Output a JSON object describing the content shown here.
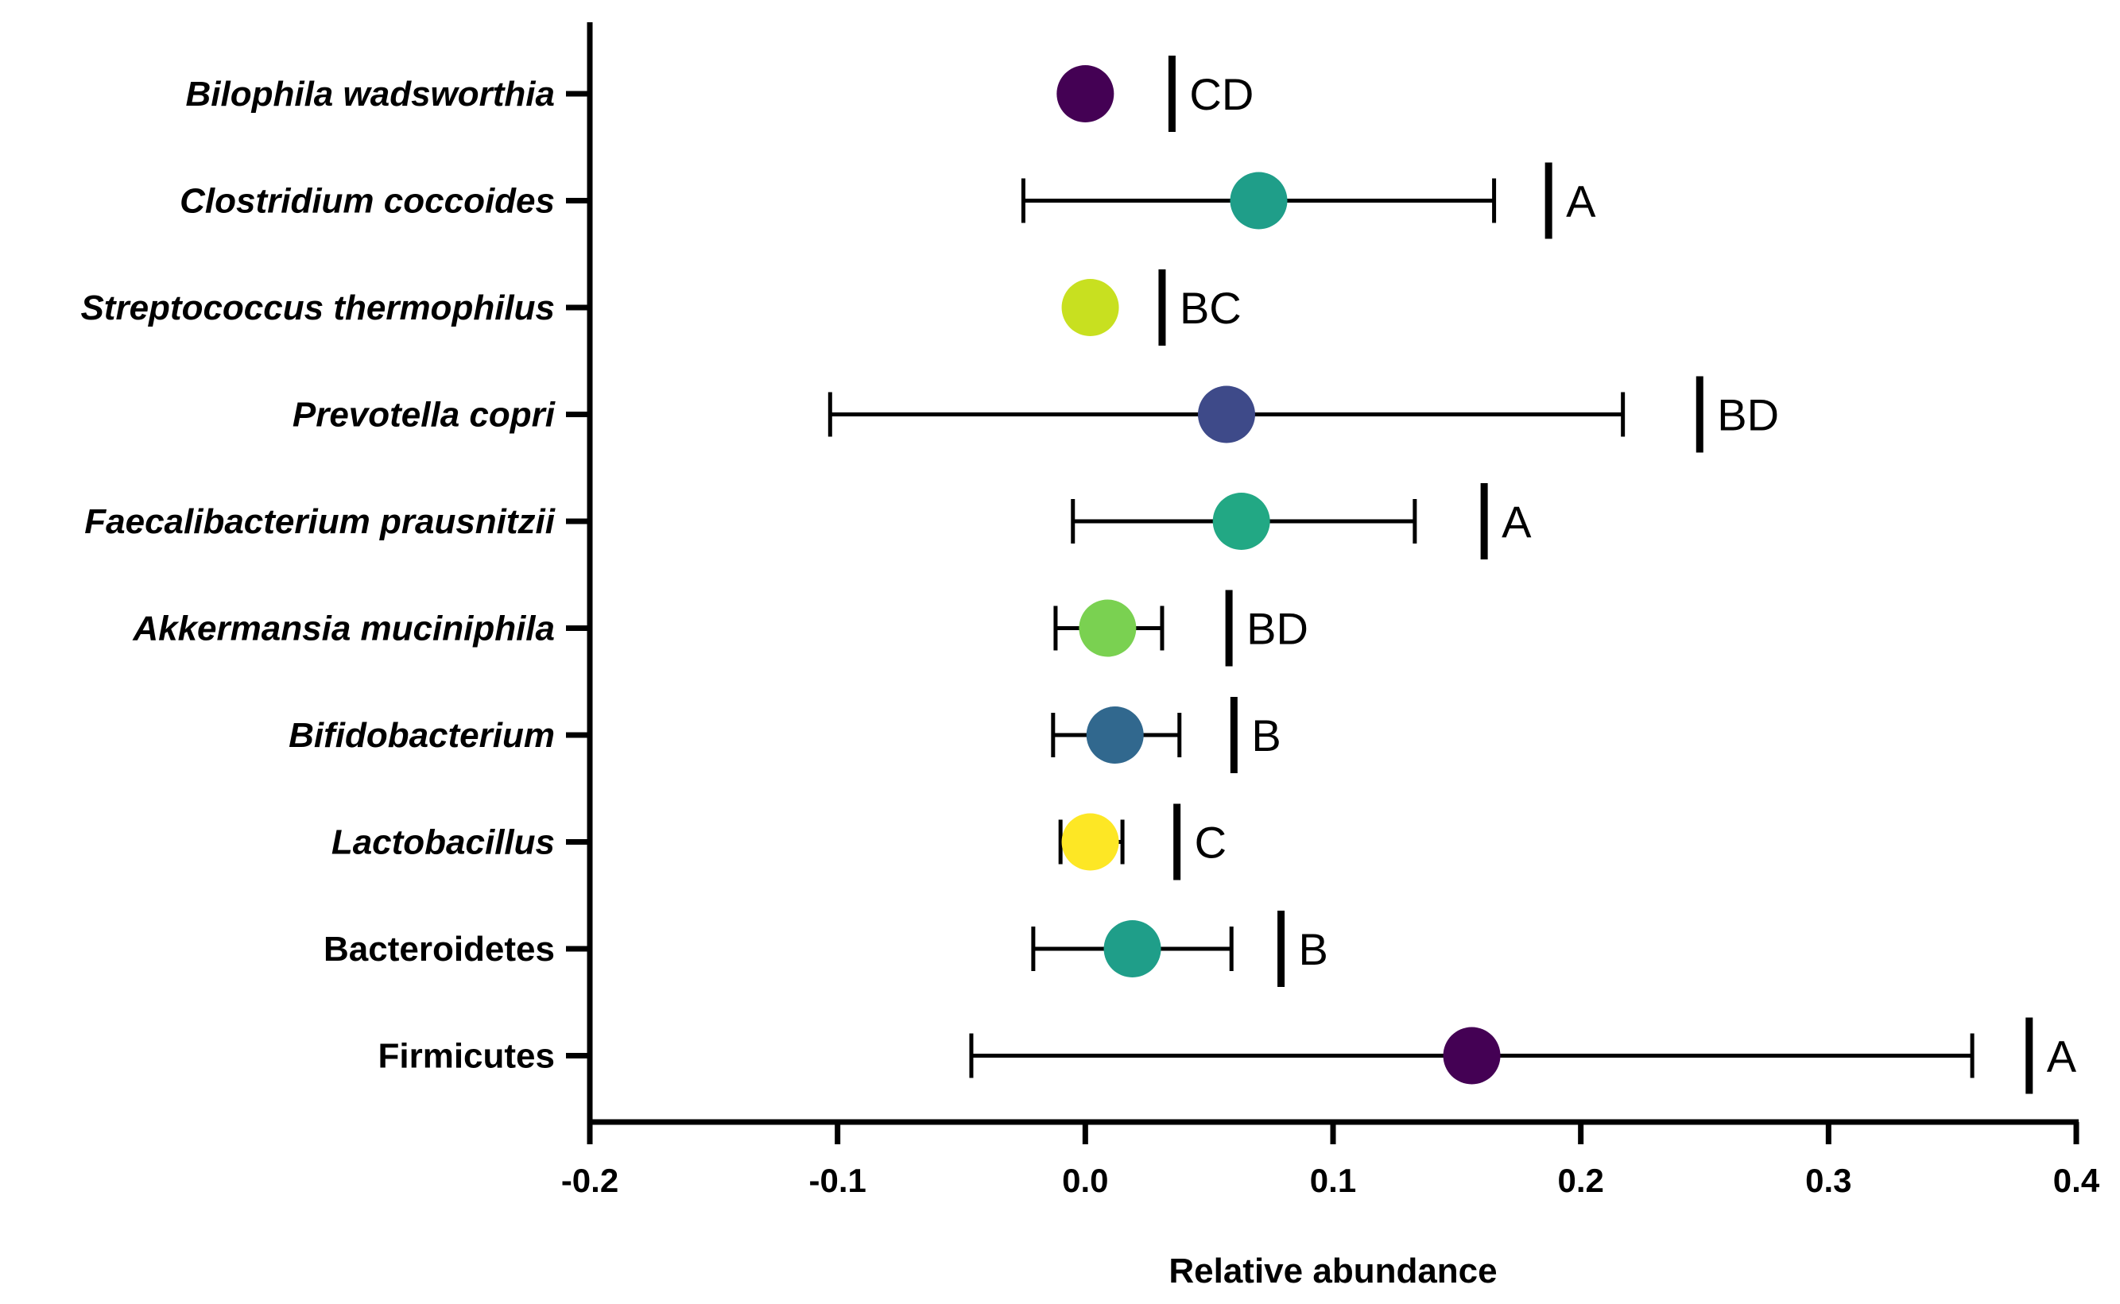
{
  "chart_data": {
    "type": "scatter",
    "orientation": "horizontal",
    "xlabel": "Relative abundance",
    "ylabel": "",
    "xlim": [
      -0.2,
      0.4
    ],
    "xticks": [
      -0.2,
      -0.1,
      0.0,
      0.1,
      0.2,
      0.3,
      0.4
    ],
    "xtick_labels": [
      "-0.2",
      "-0.1",
      "0.0",
      "0.1",
      "0.2",
      "0.3",
      "0.4"
    ],
    "points": [
      {
        "category": "Bilophila wadsworthia",
        "italic": true,
        "mean": 0.0,
        "lower": 0.0,
        "upper": 0.0,
        "color": "#440154",
        "group": "CD",
        "bracket_x": 0.035
      },
      {
        "category": "Clostridium coccoides",
        "italic": true,
        "mean": 0.07,
        "lower": -0.025,
        "upper": 0.165,
        "color": "#1f9e89",
        "group": "A",
        "bracket_x": 0.187
      },
      {
        "category": "Streptococcus thermophilus",
        "italic": true,
        "mean": 0.002,
        "lower": -0.002,
        "upper": 0.006,
        "color": "#c8e020",
        "group": "BC",
        "bracket_x": 0.031
      },
      {
        "category": "Prevotella copri",
        "italic": true,
        "mean": 0.057,
        "lower": -0.103,
        "upper": 0.217,
        "color": "#3e4a89",
        "group": "BD",
        "bracket_x": 0.248
      },
      {
        "category": "Faecalibacterium prausnitzii",
        "italic": true,
        "mean": 0.063,
        "lower": -0.005,
        "upper": 0.133,
        "color": "#22a884",
        "group": "A",
        "bracket_x": 0.161
      },
      {
        "category": "Akkermansia muciniphila",
        "italic": true,
        "mean": 0.009,
        "lower": -0.012,
        "upper": 0.031,
        "color": "#7ad151",
        "group": "BD",
        "bracket_x": 0.058
      },
      {
        "category": "Bifidobacterium",
        "italic": true,
        "mean": 0.012,
        "lower": -0.013,
        "upper": 0.038,
        "color": "#31688e",
        "group": "B",
        "bracket_x": 0.06
      },
      {
        "category": "Lactobacillus",
        "italic": true,
        "mean": 0.002,
        "lower": -0.01,
        "upper": 0.015,
        "color": "#fde725",
        "group": "C",
        "bracket_x": 0.037
      },
      {
        "category": "Bacteroidetes",
        "italic": false,
        "mean": 0.019,
        "lower": -0.021,
        "upper": 0.059,
        "color": "#1f9e89",
        "group": "B",
        "bracket_x": 0.079
      },
      {
        "category": "Firmicutes",
        "italic": false,
        "mean": 0.156,
        "lower": -0.046,
        "upper": 0.358,
        "color": "#440154",
        "group": "A",
        "bracket_x": 0.381
      }
    ]
  }
}
